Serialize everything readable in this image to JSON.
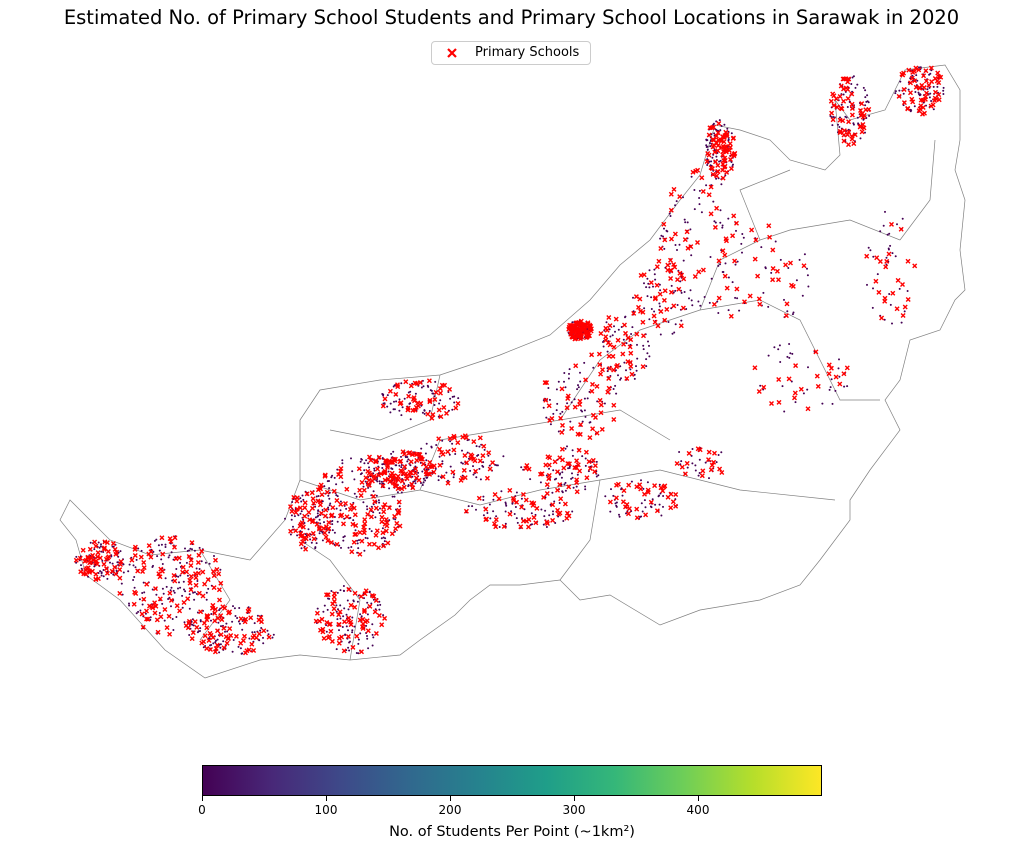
{
  "title": "Estimated No. of Primary School Students and Primary School Locations in Sarawak in 2020",
  "legend": {
    "entries": [
      {
        "label": "Primary Schools",
        "marker": "x",
        "color": "#ff0000"
      }
    ],
    "placement": "top-center"
  },
  "map": {
    "region": "Sarawak",
    "boundary_color": "#808080",
    "layers": [
      {
        "name": "Primary Schools",
        "type": "points",
        "marker": "x",
        "color": "#ff0000"
      },
      {
        "name": "Students per point",
        "type": "points",
        "colormap": "viridis"
      }
    ]
  },
  "colorbar": {
    "label": "No. of Students Per Point (~1km²)",
    "colormap": "viridis",
    "range": [
      0,
      500
    ],
    "ticks": [
      "0",
      "100",
      "200",
      "300",
      "400"
    ],
    "tick_values": [
      0,
      100,
      200,
      300,
      400
    ]
  },
  "colors": {
    "school_marker": "#ff0000",
    "student_point_low": "#440154",
    "boundary": "#808080"
  }
}
